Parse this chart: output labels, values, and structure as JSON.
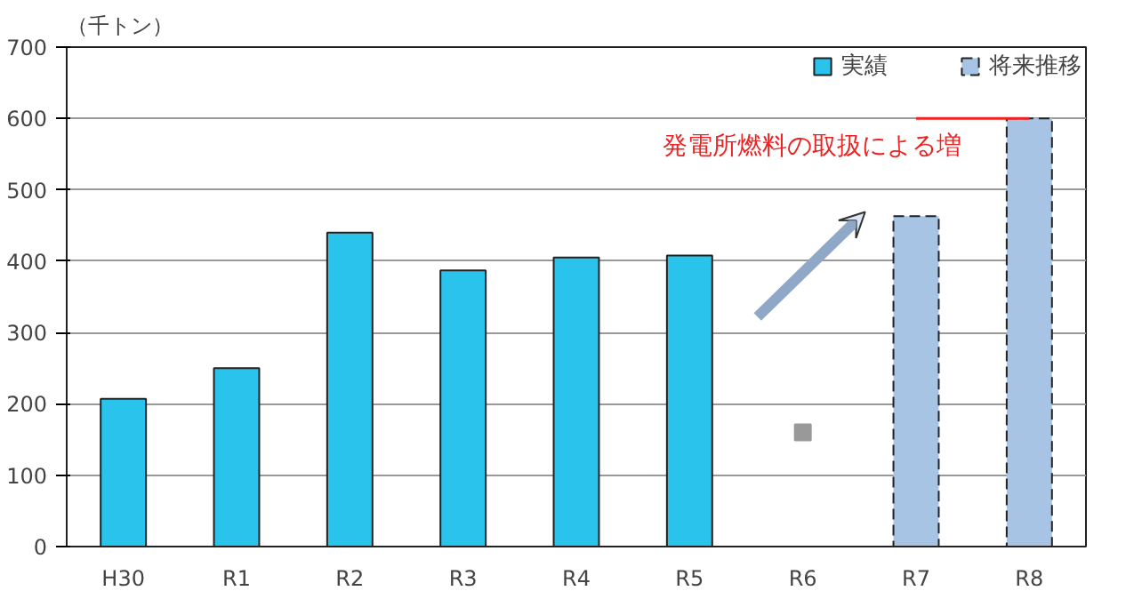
{
  "chart_data": {
    "type": "bar",
    "ylabel": "（千トン）",
    "categories": [
      "H30",
      "R1",
      "R2",
      "R3",
      "R4",
      "R5",
      "R6",
      "R7",
      "R8"
    ],
    "series": [
      {
        "name": "実績",
        "color": "#29c3ec",
        "values": [
          207,
          250,
          440,
          387,
          405,
          408,
          null,
          null,
          null
        ]
      },
      {
        "name": "将来推移",
        "color": "#a8c4e4",
        "line_style": "dashed",
        "values": [
          null,
          null,
          null,
          null,
          null,
          null,
          null,
          463,
          600
        ]
      },
      {
        "type": "scatter",
        "marker": "square",
        "color": "#999999",
        "x": [
          "R6"
        ],
        "values": [
          160
        ]
      },
      {
        "type": "line",
        "color": "#ee2222",
        "x": [
          "R7",
          "R8"
        ],
        "values": [
          600,
          600
        ]
      }
    ],
    "annotations": [
      "発電所燃料の取扱による増"
    ],
    "ylim": [
      0,
      700
    ],
    "yticks": [
      0,
      100,
      200,
      300,
      400,
      500,
      600,
      700
    ],
    "grid": "y",
    "legend": "top right"
  }
}
